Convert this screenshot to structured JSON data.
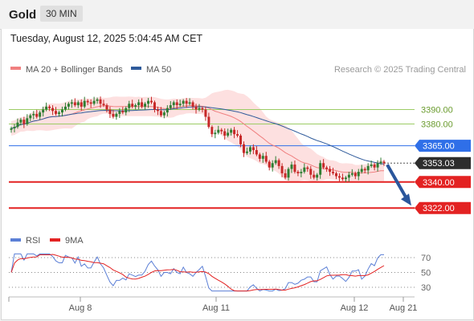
{
  "header": {
    "title": "Gold",
    "timeframe": "30 MIN"
  },
  "timestamp": "Tuesday, August 12, 2025 5:04:45 AM CET",
  "legend": [
    {
      "label": "MA 20 + Bollinger Bands",
      "color": "#f08080"
    },
    {
      "label": "MA 50",
      "color": "#2f5b9b"
    }
  ],
  "copyright": "Research © 2025 Trading Central",
  "colors": {
    "up_candle": "#2e7d32",
    "down_candle": "#c62828",
    "bollinger_fill": "#fde0e0",
    "ma20": "#f08080",
    "ma50": "#2f5b9b",
    "resistance": "#9ccc65",
    "pivot": "#2f6fe8",
    "support": "#e32222",
    "arrow": "#2a569c",
    "rsi": "#5b7fd6",
    "rsi_ma": "#e32222"
  },
  "chart_data": {
    "type": "candlestick",
    "y_range": [
      3315,
      3415
    ],
    "x_labels": [
      "Aug 8",
      "Aug 11",
      "Aug 12",
      "Aug 21"
    ],
    "levels": [
      {
        "label": "3390.00",
        "value": 3390,
        "kind": "resistance"
      },
      {
        "label": "3380.00",
        "value": 3380,
        "kind": "resistance"
      },
      {
        "label": "3365.00",
        "value": 3365,
        "kind": "pivot"
      },
      {
        "label": "3353.03",
        "value": 3353.03,
        "kind": "last"
      },
      {
        "label": "3340.00",
        "value": 3340,
        "kind": "support"
      },
      {
        "label": "3322.00",
        "value": 3322,
        "kind": "support"
      }
    ],
    "price_path": [
      3377,
      3378,
      3381,
      3383,
      3380,
      3384,
      3386,
      3387,
      3385,
      3388,
      3390,
      3392,
      3391,
      3389,
      3387,
      3388,
      3390,
      3392,
      3394,
      3395,
      3393,
      3395,
      3392,
      3396,
      3395,
      3394,
      3396,
      3397,
      3394,
      3393,
      3390,
      3387,
      3385,
      3387,
      3389,
      3388,
      3391,
      3394,
      3392,
      3393,
      3395,
      3392,
      3394,
      3396,
      3395,
      3390,
      3389,
      3386,
      3388,
      3391,
      3393,
      3395,
      3393,
      3394,
      3396,
      3394,
      3395,
      3392,
      3390,
      3391,
      3390,
      3385,
      3378,
      3373,
      3374,
      3376,
      3375,
      3372,
      3374,
      3376,
      3373,
      3372,
      3366,
      3360,
      3361,
      3364,
      3362,
      3359,
      3356,
      3358,
      3354,
      3350,
      3353,
      3355,
      3351,
      3346,
      3343,
      3349,
      3352,
      3347,
      3346,
      3347,
      3350,
      3349,
      3345,
      3343,
      3345,
      3353,
      3350,
      3349,
      3347,
      3346,
      3344,
      3343,
      3342,
      3343,
      3345,
      3346,
      3344,
      3347,
      3349,
      3348,
      3351,
      3352,
      3350,
      3353,
      3354,
      3353
    ],
    "rsi_axis": {
      "ticks": [
        70,
        50,
        30
      ],
      "range": [
        25,
        75
      ]
    },
    "rsi_legend": [
      {
        "label": "RSI",
        "color": "#5b7fd6"
      },
      {
        "label": "9MA",
        "color": "#e32222"
      }
    ]
  }
}
